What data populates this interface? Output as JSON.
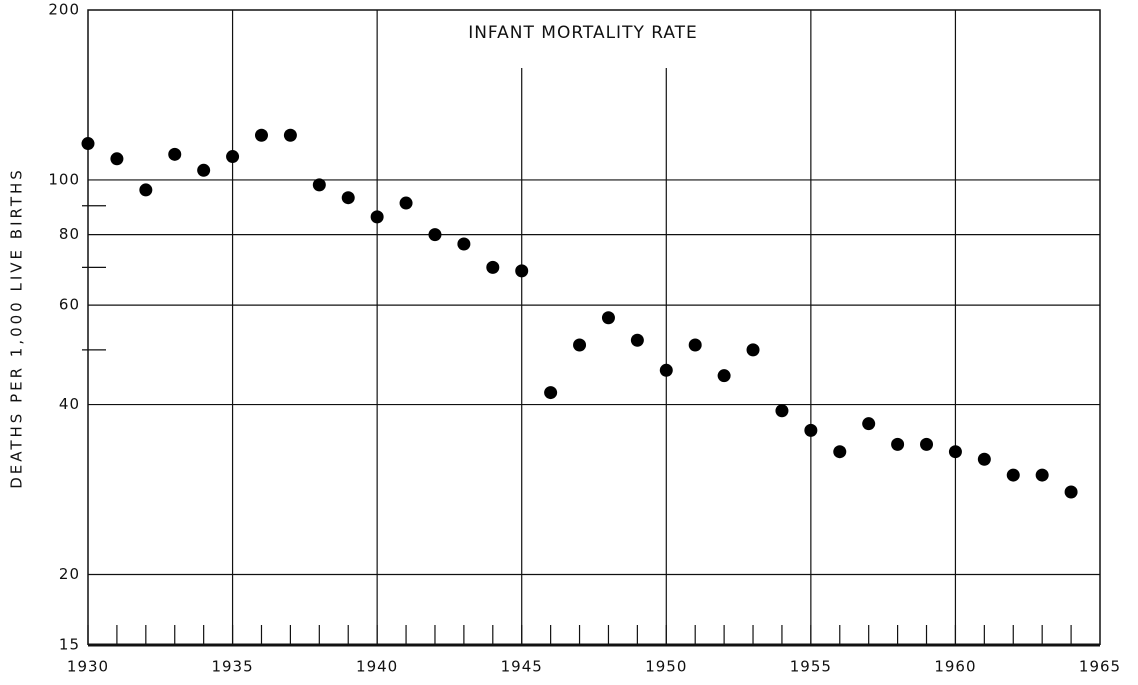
{
  "chart_data": {
    "type": "scatter",
    "title": "INFANT MORTALITY RATE",
    "y_label": "DEATHS PER 1,000 LIVE BIRTHS",
    "x": [
      1930,
      1931,
      1932,
      1933,
      1934,
      1935,
      1936,
      1937,
      1938,
      1939,
      1940,
      1941,
      1942,
      1943,
      1944,
      1945,
      1946,
      1947,
      1948,
      1949,
      1950,
      1951,
      1952,
      1953,
      1954,
      1955,
      1956,
      1957,
      1958,
      1959,
      1960,
      1961,
      1962,
      1963,
      1964
    ],
    "values": [
      116,
      109,
      96,
      111,
      104,
      110,
      120,
      120,
      98,
      93,
      86,
      91,
      80,
      77,
      70,
      69,
      42,
      51,
      57,
      52,
      46,
      51,
      45,
      50,
      39,
      36,
      33,
      37,
      34,
      34,
      33,
      32,
      30,
      30,
      28
    ],
    "color": "#000000",
    "xlim": [
      1930,
      1965
    ],
    "xticks": [
      1930,
      1935,
      1940,
      1945,
      1950,
      1955,
      1960,
      1965
    ],
    "ylim": [
      15,
      200
    ],
    "yticks": [
      15,
      20,
      40,
      60,
      80,
      100,
      200
    ],
    "y_minor_ticks": [
      50,
      70,
      90
    ],
    "log_y": true,
    "grid": true
  }
}
